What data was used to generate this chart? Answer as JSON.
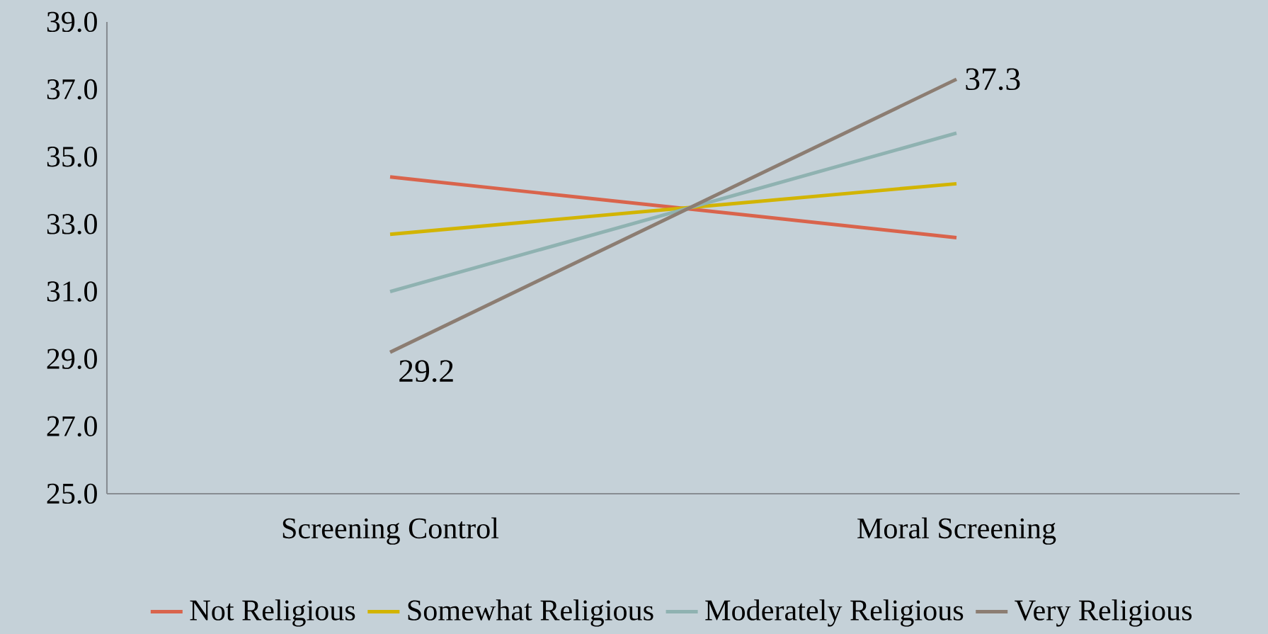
{
  "chart_data": {
    "type": "line",
    "categories": [
      "Screening Control",
      "Moral Screening"
    ],
    "series": [
      {
        "name": "Not Religious",
        "color": "#d9644c",
        "values": [
          34.4,
          32.6
        ]
      },
      {
        "name": "Somewhat Religious",
        "color": "#d2b400",
        "values": [
          32.7,
          34.2
        ]
      },
      {
        "name": "Moderately Religious",
        "color": "#8fb2b1",
        "values": [
          31.0,
          35.7
        ]
      },
      {
        "name": "Very Religious",
        "color": "#8c7d72",
        "values": [
          29.2,
          37.3
        ],
        "value_labels": [
          "29.2",
          "37.3"
        ]
      }
    ],
    "ylim": [
      25,
      39
    ],
    "yticks": [
      {
        "value": 25,
        "label": "25.0"
      },
      {
        "value": 27,
        "label": "27.0"
      },
      {
        "value": 29,
        "label": "29.0"
      },
      {
        "value": 31,
        "label": "31.0"
      },
      {
        "value": 33,
        "label": "33.0"
      },
      {
        "value": 35,
        "label": "35.0"
      },
      {
        "value": 37,
        "label": "37.0"
      },
      {
        "value": 39,
        "label": "39.0"
      }
    ],
    "legend": "bottom"
  }
}
